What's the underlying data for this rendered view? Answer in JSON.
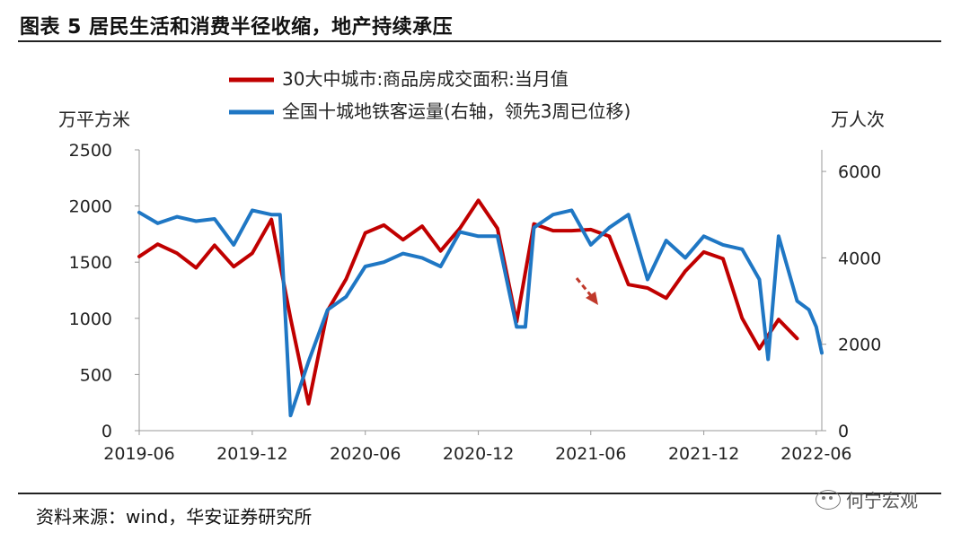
{
  "header": {
    "title": "图表 5 居民生活和消费半径收缩，地产持续承压"
  },
  "footer": {
    "source": "资料来源：wind，华安证券研究所",
    "watermark": "何宁宏观"
  },
  "chart_data": {
    "type": "line",
    "title": "",
    "left_axis_unit": "万平方米",
    "right_axis_unit": "万人次",
    "ylim_left": [
      0,
      2500
    ],
    "ylim_right": [
      0,
      6500
    ],
    "left_ticks": [
      "0",
      "500",
      "1000",
      "1500",
      "2000",
      "2500"
    ],
    "right_ticks": [
      "0",
      "2000",
      "4000",
      "6000"
    ],
    "x_ticks": [
      "2019-06",
      "2019-12",
      "2020-06",
      "2020-12",
      "2021-06",
      "2021-12",
      "2022-06"
    ],
    "legend_placement": "top-center",
    "colors": {
      "red_series": "#c00000",
      "blue_series": "#1f77c4",
      "arrow": "#c0392b"
    },
    "series": [
      {
        "name": "30大中城市:商品房成交面积:当月值",
        "axis": "left",
        "x": [
          "2019-06-01",
          "2019-07-01",
          "2019-08-01",
          "2019-09-01",
          "2019-10-01",
          "2019-11-01",
          "2019-12-01",
          "2020-01-01",
          "2020-02-01",
          "2020-03-01",
          "2020-04-01",
          "2020-05-01",
          "2020-06-01",
          "2020-07-01",
          "2020-08-01",
          "2020-09-01",
          "2020-10-01",
          "2020-11-01",
          "2020-12-01",
          "2021-01-01",
          "2021-02-01",
          "2021-03-01",
          "2021-04-01",
          "2021-05-01",
          "2021-06-01",
          "2021-07-01",
          "2021-08-01",
          "2021-09-01",
          "2021-10-01",
          "2021-11-01",
          "2021-12-01",
          "2022-01-01",
          "2022-02-01",
          "2022-03-01",
          "2022-04-01",
          "2022-05-01"
        ],
        "values": [
          1550,
          1660,
          1580,
          1450,
          1650,
          1460,
          1580,
          1880,
          1000,
          240,
          1070,
          1350,
          1760,
          1830,
          1700,
          1820,
          1600,
          1800,
          2050,
          1800,
          970,
          1840,
          1780,
          1780,
          1790,
          1730,
          1300,
          1270,
          1180,
          1420,
          1590,
          1530,
          1000,
          730,
          990,
          820
        ]
      },
      {
        "name": "全国十城地铁客运量(右轴，领先3周已位移)",
        "axis": "right",
        "x": [
          "2019-06-01",
          "2019-07-01",
          "2019-08-01",
          "2019-09-01",
          "2019-10-01",
          "2019-11-01",
          "2019-12-01",
          "2020-01-01",
          "2020-01-15",
          "2020-02-01",
          "2020-03-01",
          "2020-04-01",
          "2020-05-01",
          "2020-06-01",
          "2020-07-01",
          "2020-08-01",
          "2020-09-01",
          "2020-10-01",
          "2020-11-01",
          "2020-12-01",
          "2021-01-01",
          "2021-02-01",
          "2021-02-15",
          "2021-03-01",
          "2021-04-01",
          "2021-05-01",
          "2021-06-01",
          "2021-07-01",
          "2021-08-01",
          "2021-09-01",
          "2021-10-01",
          "2021-11-01",
          "2021-12-01",
          "2022-01-01",
          "2022-02-01",
          "2022-03-01",
          "2022-03-15",
          "2022-04-01",
          "2022-05-01",
          "2022-05-20",
          "2022-06-01",
          "2022-06-10"
        ],
        "values": [
          5050,
          4800,
          4950,
          4850,
          4900,
          4300,
          5100,
          5000,
          5000,
          350,
          1600,
          2800,
          3100,
          3800,
          3900,
          4100,
          4000,
          3800,
          4600,
          4500,
          4500,
          2400,
          2400,
          4700,
          5000,
          5100,
          4300,
          4700,
          5000,
          3500,
          4400,
          4000,
          4500,
          4300,
          4200,
          3500,
          1650,
          4500,
          3000,
          2800,
          2400,
          1800
        ]
      }
    ]
  }
}
